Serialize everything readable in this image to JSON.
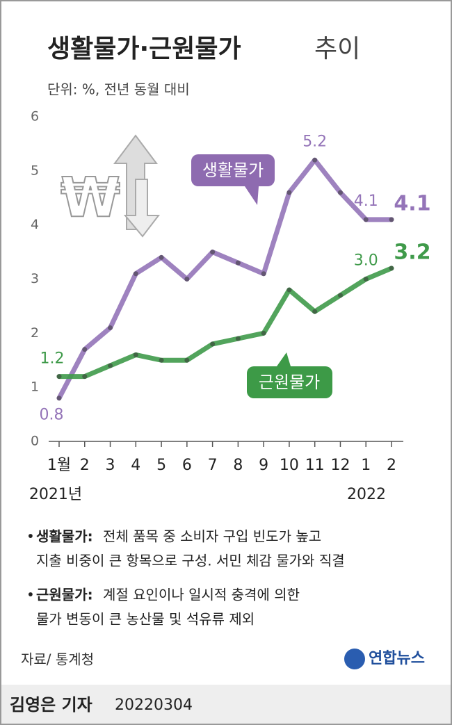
{
  "chart_data": {
    "type": "line",
    "title": "생활물가·근원물가",
    "title_suffix": "추이",
    "subtitle": "단위: %, 전년 동월 대비",
    "categories": [
      "1월",
      "2",
      "3",
      "4",
      "5",
      "6",
      "7",
      "8",
      "9",
      "10",
      "11",
      "12",
      "1",
      "2"
    ],
    "x_group_labels": [
      "2021년",
      "2022"
    ],
    "series": [
      {
        "name": "생활물가",
        "color": "#9474b8",
        "values": [
          0.8,
          1.7,
          2.1,
          3.1,
          3.4,
          3.0,
          3.5,
          3.3,
          3.1,
          4.6,
          5.2,
          4.6,
          4.1,
          4.1
        ],
        "value_labels": [
          "0.8",
          null,
          null,
          null,
          null,
          null,
          null,
          null,
          null,
          null,
          "5.2",
          null,
          "4.1",
          "4.1"
        ]
      },
      {
        "name": "근원물가",
        "color": "#3f9a4a",
        "values": [
          1.2,
          1.2,
          1.4,
          1.6,
          1.5,
          1.5,
          1.8,
          1.9,
          2.0,
          2.8,
          2.4,
          2.7,
          3.0,
          3.2
        ],
        "value_labels": [
          "1.2",
          null,
          null,
          null,
          null,
          null,
          null,
          null,
          null,
          null,
          null,
          null,
          "3.0",
          "3.2"
        ]
      }
    ],
    "ylim": [
      0,
      6
    ],
    "yticks": [
      0,
      1,
      2,
      3,
      4,
      5,
      6
    ],
    "grid": false
  },
  "notes": [
    {
      "term": "생활물가:",
      "lines": [
        "전체 품목 중 소비자 구입 빈도가 높고",
        "지출 비중이 큰 항목으로 구성. 서민 체감 물가와 직결"
      ]
    },
    {
      "term": "근원물가:",
      "lines": [
        "계절 요인이나 일시적 충격에 의한",
        "물가 변동이 큰 농산물 및 석유류 제외"
      ]
    }
  ],
  "source": "자료/ 통계청",
  "logo": "연합뉴스",
  "byline": {
    "author": "김영은 기자",
    "date": "20220304"
  }
}
